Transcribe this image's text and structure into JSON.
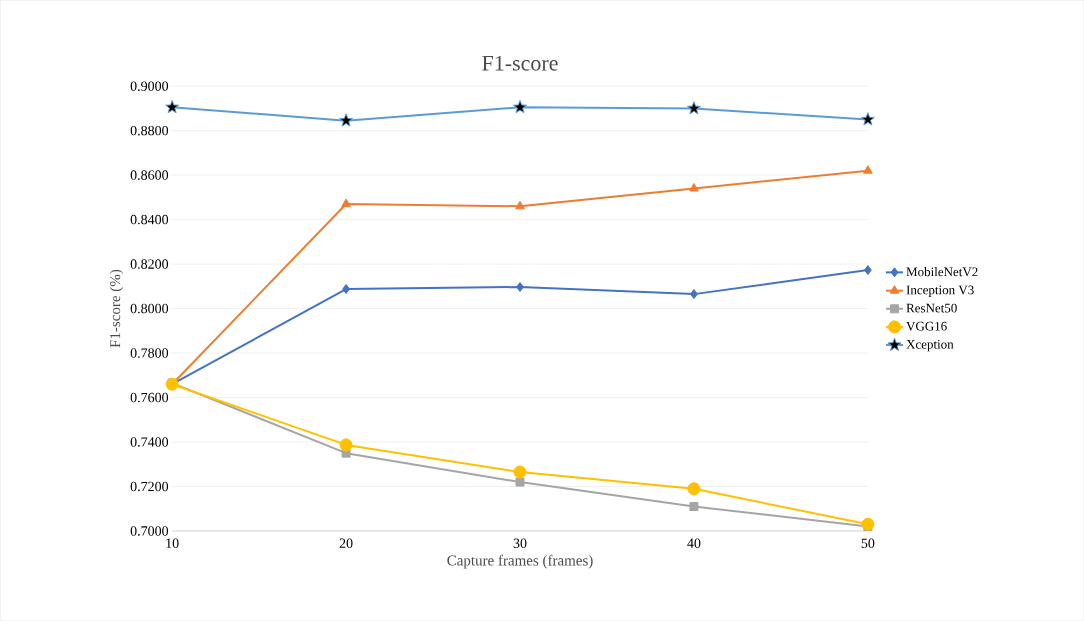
{
  "chart_data": {
    "type": "line",
    "title": "F1-score",
    "xlabel": "Capture frames (frames)",
    "ylabel": "F1-score (%)",
    "x": [
      10,
      20,
      30,
      40,
      50
    ],
    "series": [
      {
        "name": "MobileNetV2",
        "color": "#4472c4",
        "marker": "diamond",
        "values": [
          0.766,
          0.8088,
          0.8097,
          0.8065,
          0.8173
        ]
      },
      {
        "name": "Inception V3",
        "color": "#ed7d31",
        "marker": "triangle",
        "values": [
          0.766,
          0.847,
          0.846,
          0.854,
          0.862
        ]
      },
      {
        "name": "ResNet50",
        "color": "#a5a5a5",
        "marker": "square",
        "values": [
          0.7665,
          0.735,
          0.722,
          0.711,
          0.702
        ]
      },
      {
        "name": "VGG16",
        "color": "#ffc000",
        "marker": "circle",
        "values": [
          0.766,
          0.7387,
          0.7265,
          0.719,
          0.703
        ]
      },
      {
        "name": "Xception",
        "color": "#5b9bd5",
        "marker": "star",
        "values": [
          0.8905,
          0.8845,
          0.8905,
          0.89,
          0.885
        ]
      }
    ],
    "xlim": [
      10,
      50
    ],
    "xticks": [
      10,
      20,
      30,
      40,
      50
    ],
    "ylim": [
      0.7,
      0.9
    ],
    "yticks": [
      {
        "value": 0.7,
        "label": "0.7000"
      },
      {
        "value": 0.72,
        "label": "0.7200"
      },
      {
        "value": 0.74,
        "label": "0.7400"
      },
      {
        "value": 0.76,
        "label": "0.7600"
      },
      {
        "value": 0.78,
        "label": "0.7800"
      },
      {
        "value": 0.8,
        "label": "0.8000"
      },
      {
        "value": 0.82,
        "label": "0.8200"
      },
      {
        "value": 0.84,
        "label": "0.8400"
      },
      {
        "value": 0.86,
        "label": "0.8600"
      },
      {
        "value": 0.88,
        "label": "0.8800"
      },
      {
        "value": 0.9,
        "label": "0.9000"
      }
    ],
    "grid": "y",
    "legend": "right",
    "line_style": "solid"
  }
}
